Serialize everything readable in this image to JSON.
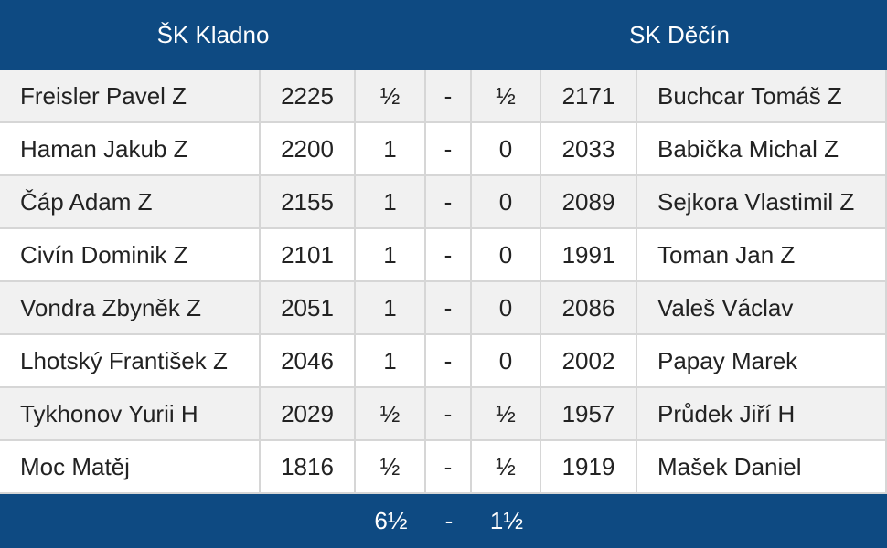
{
  "header": {
    "home": "ŠK Kladno",
    "away": "SK Děčín"
  },
  "rows": [
    [
      "Freisler Pavel Z",
      "2225",
      "½",
      "-",
      "½",
      "2171",
      "Buchcar Tomáš Z"
    ],
    [
      "Haman Jakub Z",
      "2200",
      "1",
      "-",
      "0",
      "2033",
      "Babička Michal Z"
    ],
    [
      "Čáp Adam Z",
      "2155",
      "1",
      "-",
      "0",
      "2089",
      "Sejkora Vlastimil Z"
    ],
    [
      "Civín Dominik Z",
      "2101",
      "1",
      "-",
      "0",
      "1991",
      "Toman Jan Z"
    ],
    [
      "Vondra Zbyněk Z",
      "2051",
      "1",
      "-",
      "0",
      "2086",
      "Valeš Václav"
    ],
    [
      "Lhotský František Z",
      "2046",
      "1",
      "-",
      "0",
      "2002",
      "Papay Marek"
    ],
    [
      "Tykhonov Yurii H",
      "2029",
      "½",
      "-",
      "½",
      "1957",
      "Průdek Jiří H"
    ],
    [
      "Moc Matěj",
      "1816",
      "½",
      "-",
      "½",
      "1919",
      "Mašek Daniel"
    ]
  ],
  "footer": [
    "6½",
    "-",
    "1½"
  ]
}
